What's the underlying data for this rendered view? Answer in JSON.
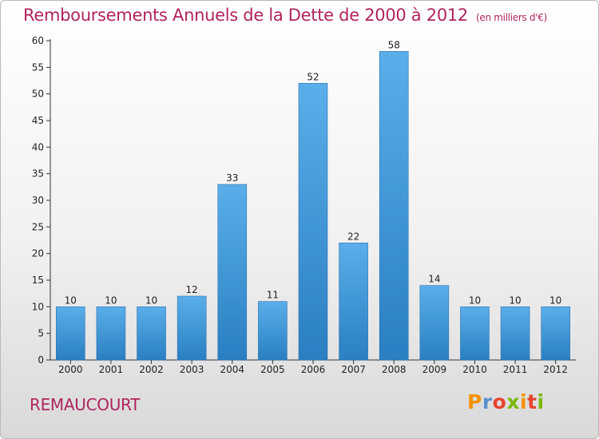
{
  "header": {
    "title": "Remboursements Annuels de la Dette de 2000 à 2012",
    "unit": "(en milliers d'€)"
  },
  "footer": {
    "commune": "REMAUCOURT",
    "logo_text": "Proxiti"
  },
  "colors": {
    "title": "#b0245f",
    "bar_top": "#5aaee9",
    "bar_bottom": "#2a7fc2",
    "axis": "#333333",
    "logo": [
      "#f39200",
      "#5a8fd0",
      "#e8432e",
      "#7ab800",
      "#f39200",
      "#e8432e",
      "#7ab800"
    ]
  },
  "chart_data": {
    "type": "bar",
    "title": "Remboursements Annuels de la Dette de 2000 à 2012",
    "categories": [
      "2000",
      "2001",
      "2002",
      "2003",
      "2004",
      "2005",
      "2006",
      "2007",
      "2008",
      "2009",
      "2010",
      "2011",
      "2012"
    ],
    "values": [
      10,
      10,
      10,
      12,
      33,
      11,
      52,
      22,
      58,
      14,
      10,
      10,
      10
    ],
    "data_labels": [
      "10",
      "10",
      "10",
      "12",
      "33",
      "11",
      "52",
      "22",
      "58",
      "14",
      "10",
      "10",
      "10"
    ],
    "ylim": [
      0,
      60
    ],
    "yticks": [
      0,
      5,
      10,
      15,
      20,
      25,
      30,
      35,
      40,
      45,
      50,
      55,
      60
    ],
    "grid": false,
    "legend": "none"
  }
}
